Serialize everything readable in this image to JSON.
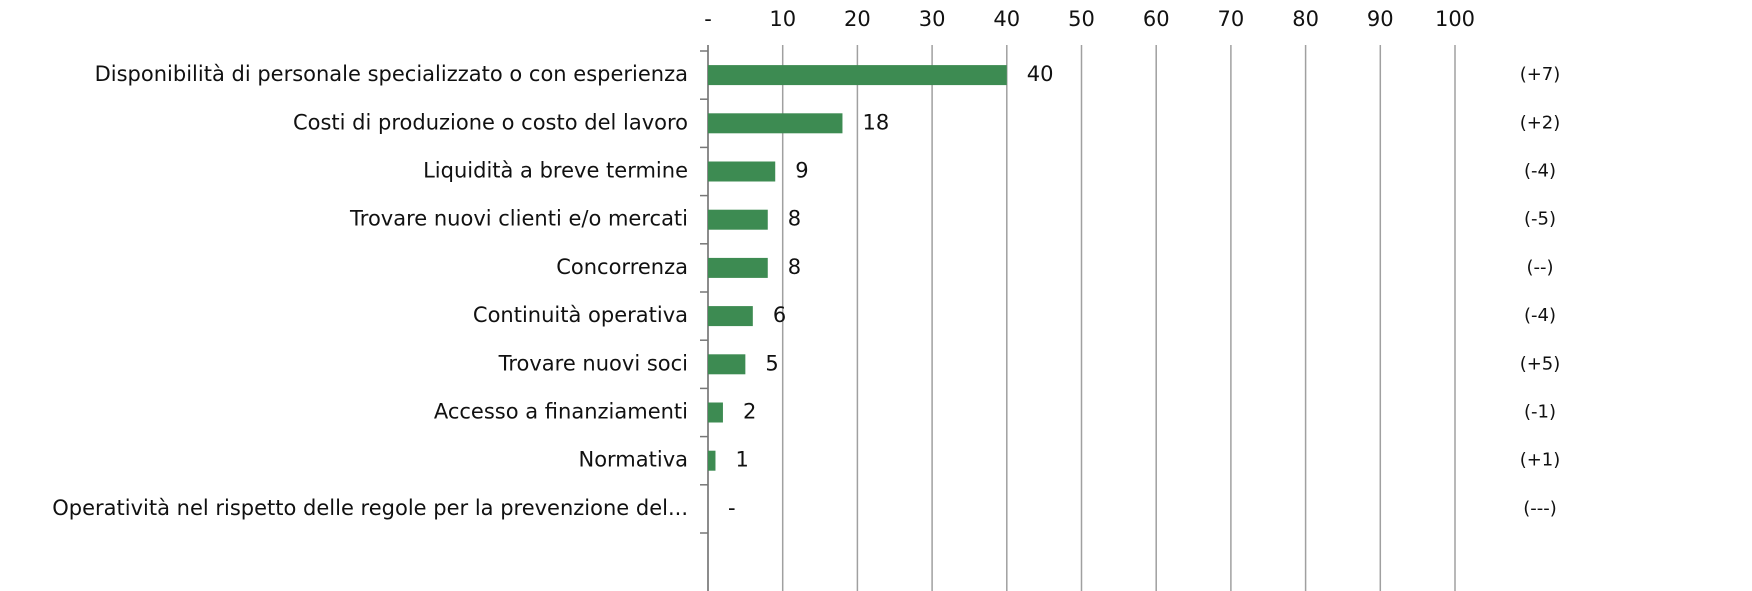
{
  "chart_data": {
    "type": "hbar",
    "categories": [
      "Disponibilità di personale specializzato o con esperienza",
      "Costi di produzione o costo del lavoro",
      "Liquidità a breve termine",
      "Trovare nuovi clienti e/o mercati",
      "Concorrenza",
      "Continuità operativa",
      "Trovare nuovi soci",
      "Accesso a finanziamenti",
      "Normativa",
      "Operatività nel rispetto delle regole per la prevenzione del..."
    ],
    "values": [
      40,
      18,
      9,
      8,
      8,
      6,
      5,
      2,
      1,
      0
    ],
    "value_labels": [
      "40",
      "18",
      "9",
      "8",
      "8",
      "6",
      "5",
      "2",
      "1",
      "-"
    ],
    "changes": [
      "(+7)",
      "(+2)",
      "(-4)",
      "(-5)",
      "(--)",
      "(-4)",
      "(+5)",
      "(-1)",
      "(+1)",
      "(---)"
    ],
    "color": "#3d8b52",
    "xlim": [
      0,
      100
    ],
    "xticks": [
      {
        "value": 0,
        "label": "-"
      },
      10,
      20,
      30,
      40,
      50,
      60,
      70,
      80,
      90,
      100
    ],
    "grid": true
  }
}
